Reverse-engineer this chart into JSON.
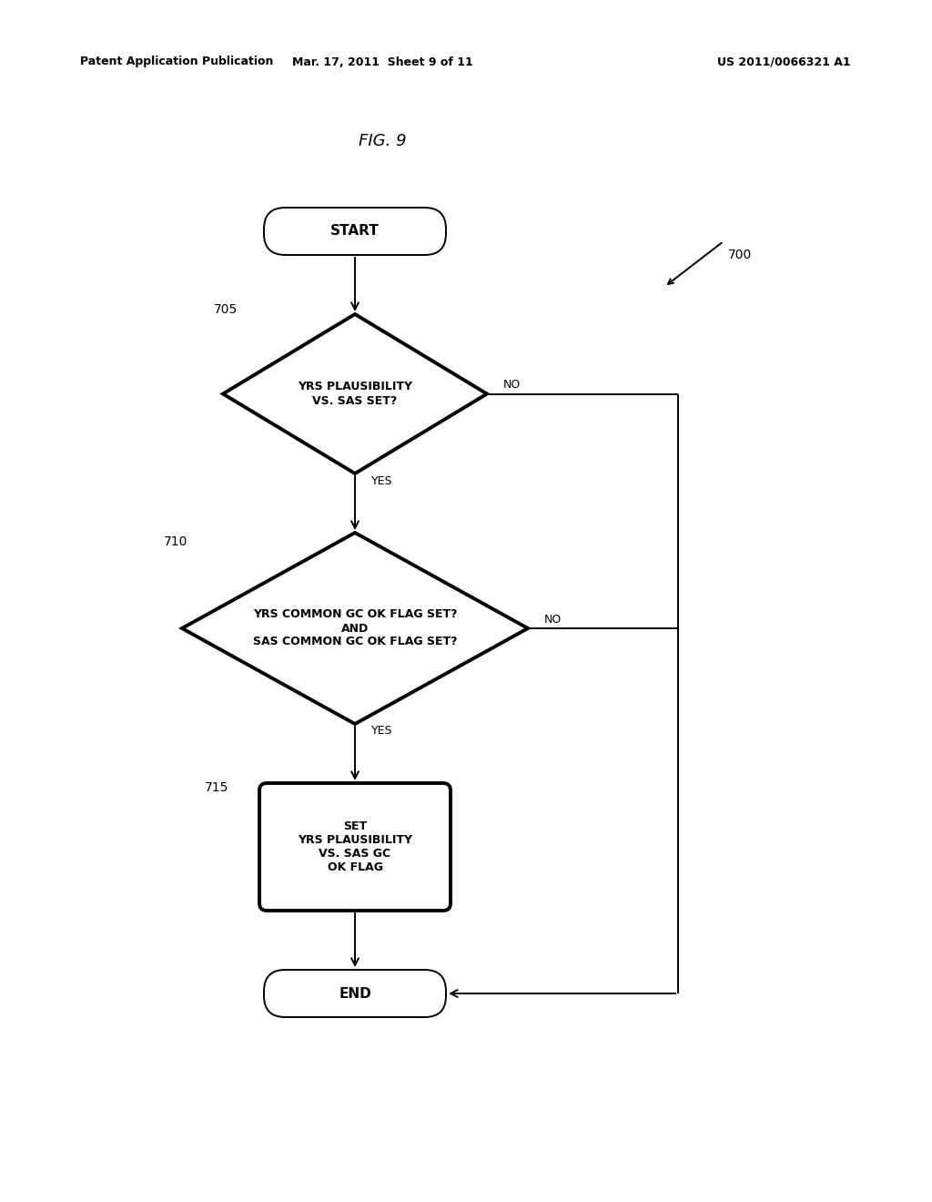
{
  "title": "FIG. 9",
  "header_left": "Patent Application Publication",
  "header_mid": "Mar. 17, 2011  Sheet 9 of 11",
  "header_right": "US 2011/0066321 A1",
  "label_700": "700",
  "label_705": "705",
  "label_710": "710",
  "label_715": "715",
  "node_start": "START",
  "node_diamond1": "YRS PLAUSIBILITY\nVS. SAS SET?",
  "node_diamond2": "YRS COMMON GC OK FLAG SET?\nAND\nSAS COMMON GC OK FLAG SET?",
  "node_rect": "SET\nYRS PLAUSIBILITY\nVS. SAS GC\nOK FLAG",
  "node_end": "END",
  "yes1": "YES",
  "no1": "NO",
  "yes2": "YES",
  "no2": "NO",
  "bg_color": "#ffffff",
  "line_color": "#000000",
  "text_color": "#000000",
  "thick_lw": 2.8,
  "thin_lw": 1.4
}
